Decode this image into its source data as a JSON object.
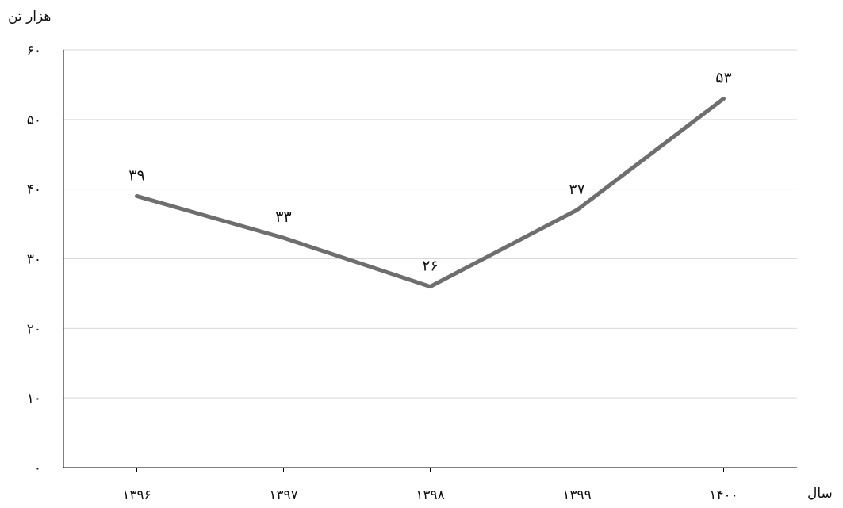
{
  "chart_data": {
    "type": "line",
    "ylabel": "هزار تن",
    "xlabel": "سال",
    "categories": [
      "۱۳۹۶",
      "۱۳۹۷",
      "۱۳۹۸",
      "۱۳۹۹",
      "۱۴۰۰"
    ],
    "series": [
      {
        "values": [
          39,
          33,
          26,
          37,
          53
        ],
        "color": "#6e6e6e"
      }
    ],
    "data_labels": [
      "۳۹",
      "۳۳",
      "۲۶",
      "۳۷",
      "۵۳"
    ],
    "ylim": [
      0,
      60
    ],
    "yticks": [
      0,
      10,
      20,
      30,
      40,
      50,
      60
    ],
    "ytick_labels": [
      "۰",
      "۱۰",
      "۲۰",
      "۳۰",
      "۴۰",
      "۵۰",
      "۶۰"
    ],
    "grid": true,
    "legend": "none"
  }
}
